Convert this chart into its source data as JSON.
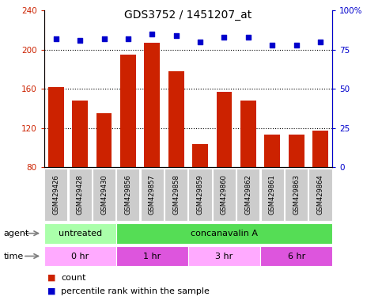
{
  "title": "GDS3752 / 1451207_at",
  "samples": [
    "GSM429426",
    "GSM429428",
    "GSM429430",
    "GSM429856",
    "GSM429857",
    "GSM429858",
    "GSM429859",
    "GSM429860",
    "GSM429862",
    "GSM429861",
    "GSM429863",
    "GSM429864"
  ],
  "counts": [
    162,
    148,
    135,
    195,
    207,
    178,
    104,
    157,
    148,
    113,
    113,
    117
  ],
  "percentile_ranks": [
    82,
    81,
    82,
    82,
    85,
    84,
    80,
    83,
    83,
    78,
    78,
    80
  ],
  "ylim_left": [
    80,
    240
  ],
  "ylim_right": [
    0,
    100
  ],
  "yticks_left": [
    80,
    120,
    160,
    200,
    240
  ],
  "yticks_right": [
    0,
    25,
    50,
    75,
    100
  ],
  "bar_color": "#cc2200",
  "dot_color": "#0000cc",
  "gridline_color": "#000000",
  "agent_row": [
    {
      "label": "untreated",
      "start": 0,
      "end": 3,
      "color": "#aaffaa"
    },
    {
      "label": "concanavalin A",
      "start": 3,
      "end": 12,
      "color": "#55dd55"
    }
  ],
  "time_row": [
    {
      "label": "0 hr",
      "start": 0,
      "end": 3,
      "color": "#ffaaff"
    },
    {
      "label": "1 hr",
      "start": 3,
      "end": 6,
      "color": "#dd55dd"
    },
    {
      "label": "3 hr",
      "start": 6,
      "end": 9,
      "color": "#ffaaff"
    },
    {
      "label": "6 hr",
      "start": 9,
      "end": 12,
      "color": "#dd55dd"
    }
  ],
  "sample_box_color": "#cccccc",
  "legend_count_color": "#cc2200",
  "legend_dot_color": "#0000cc",
  "n_samples": 12
}
